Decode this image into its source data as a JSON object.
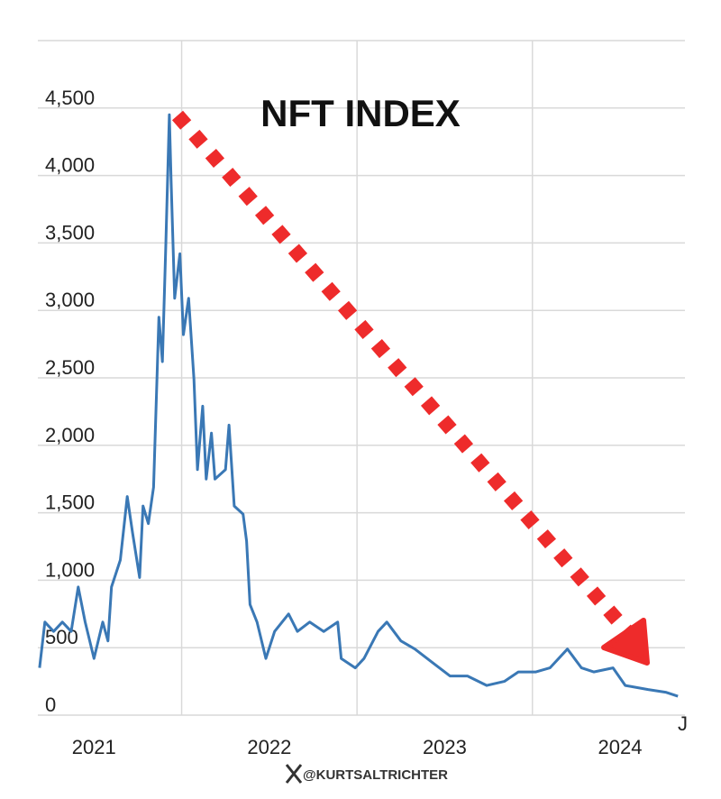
{
  "chart_data": {
    "type": "line",
    "title": "NFT INDEX",
    "footer": "@KURTSALTRICHTER",
    "edge_label": "J",
    "x": [
      2020.69,
      2020.72,
      2020.77,
      2020.82,
      2020.87,
      2020.91,
      2020.95,
      2021.0,
      2021.05,
      2021.08,
      2021.1,
      2021.15,
      2021.19,
      2021.22,
      2021.26,
      2021.28,
      2021.31,
      2021.34,
      2021.37,
      2021.39,
      2021.41,
      2021.43,
      2021.44,
      2021.46,
      2021.49,
      2021.51,
      2021.54,
      2021.57,
      2021.59,
      2021.62,
      2021.64,
      2021.67,
      2021.69,
      2021.75,
      2021.77,
      2021.8,
      2021.85,
      2021.87,
      2021.89,
      2021.93,
      2021.98,
      2022.03,
      2022.11,
      2022.16,
      2022.23,
      2022.31,
      2022.39,
      2022.41,
      2022.49,
      2022.54,
      2022.62,
      2022.67,
      2022.75,
      2022.83,
      2022.93,
      2023.03,
      2023.13,
      2023.24,
      2023.34,
      2023.42,
      2023.52,
      2023.6,
      2023.7,
      2023.78,
      2023.85,
      2023.96,
      2024.03,
      2024.16,
      2024.26,
      2024.33
    ],
    "series": [
      {
        "name": "NFT Index",
        "color": "#3a78b5",
        "values": [
          350,
          690,
          620,
          690,
          620,
          950,
          690,
          420,
          690,
          550,
          950,
          1150,
          1620,
          1350,
          1020,
          1550,
          1420,
          1690,
          2950,
          2620,
          3490,
          4450,
          3950,
          3090,
          3420,
          2820,
          3090,
          2490,
          1820,
          2290,
          1750,
          2090,
          1750,
          1820,
          2150,
          1550,
          1490,
          1290,
          820,
          690,
          420,
          620,
          750,
          620,
          690,
          620,
          690,
          420,
          350,
          420,
          620,
          690,
          550,
          490,
          390,
          290,
          290,
          220,
          250,
          320,
          320,
          350,
          490,
          350,
          320,
          350,
          220,
          190,
          170,
          140
        ]
      }
    ],
    "xlim": [
      2020.68,
      2024.37
    ],
    "xticks": [
      2021,
      2022,
      2023,
      2024
    ],
    "x_grid": [
      2021.5,
      2022.5,
      2023.5
    ],
    "ylim": [
      0,
      5000
    ],
    "yticks": [
      0,
      {
        "value": 500,
        "label": "500"
      },
      {
        "value": 1000,
        "label": "1,000"
      },
      {
        "value": 1500,
        "label": "1,500"
      },
      {
        "value": 2000,
        "label": "2,000"
      },
      {
        "value": 2500,
        "label": "2,500"
      },
      {
        "value": 3000,
        "label": "3,000"
      },
      {
        "value": 3500,
        "label": "3,500"
      },
      {
        "value": 4000,
        "label": "4,000"
      },
      {
        "value": 4500,
        "label": "4,500"
      }
    ],
    "grid": true,
    "grid_top": 5000
  }
}
